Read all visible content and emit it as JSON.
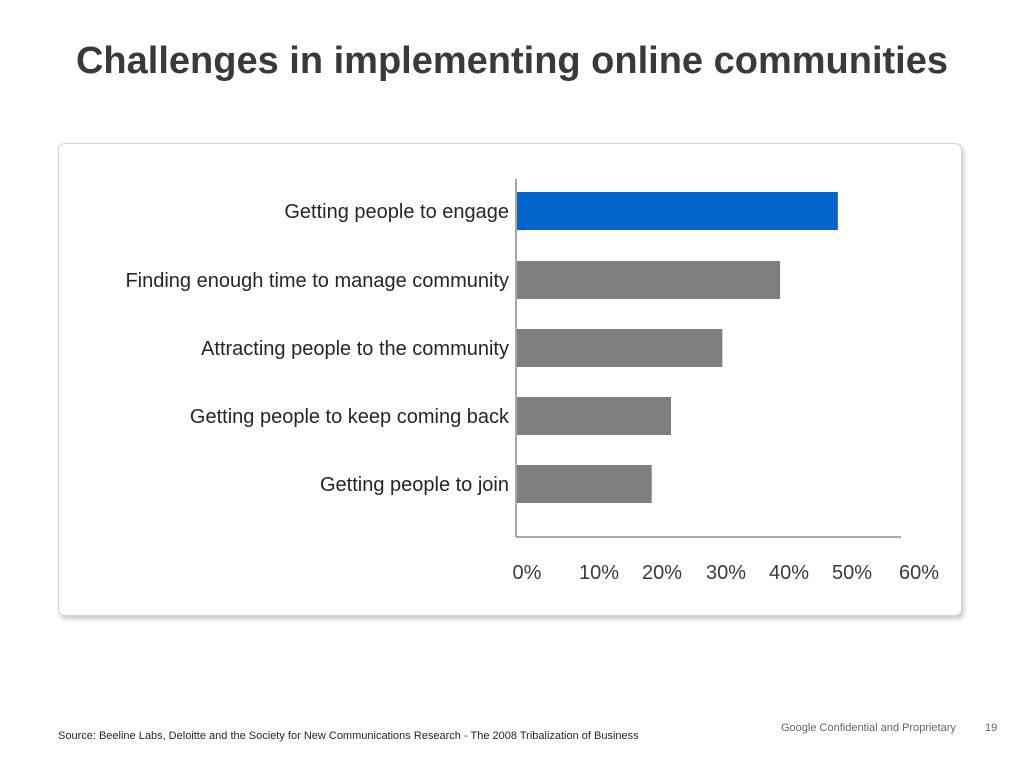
{
  "slide": {
    "title": "Challenges in implementing online communities",
    "source": "Source: Beeline Labs, Deloitte and the Society for New Communications Research - The 2008 Tribalization of Business",
    "confidential": "Google Confidential and Proprietary",
    "page_number": "19"
  },
  "chart_data": {
    "type": "bar",
    "orientation": "horizontal",
    "title": "",
    "xlabel": "",
    "ylabel": "",
    "categories": [
      "Getting people to engage",
      "Finding enough time to manage community",
      "Attracting people to the community",
      "Getting people to keep coming back",
      "Getting people to join"
    ],
    "values": [
      50,
      41,
      32,
      24,
      21
    ],
    "xlim": [
      0,
      60
    ],
    "x_ticks": [
      "0%",
      "10%",
      "20%",
      "30%",
      "40%",
      "50%",
      "60%"
    ],
    "grid": false,
    "legend": "none",
    "colors": {
      "highlight": "#0066cc",
      "default": "#7f7f7f",
      "axis": "#8c8c8c"
    },
    "highlight_index": 0
  }
}
